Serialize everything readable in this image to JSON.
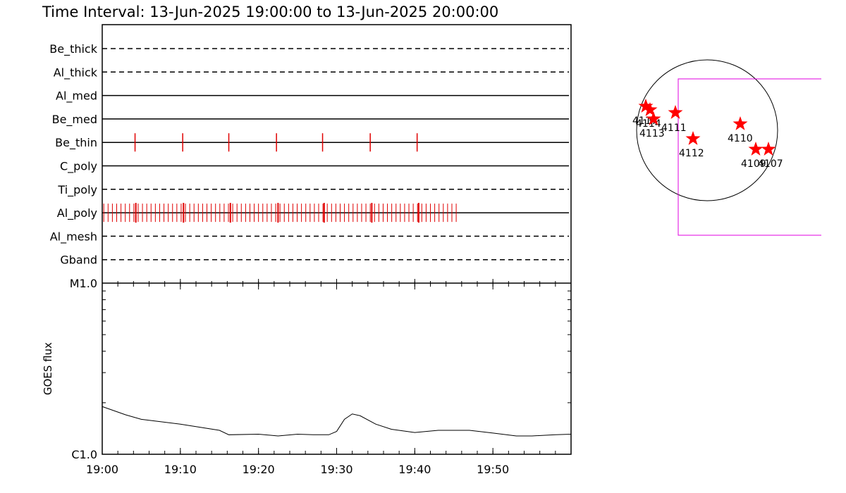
{
  "title": "Time Interval: 13-Jun-2025 19:00:00 to 13-Jun-2025 20:00:00",
  "time_axis": {
    "xlim": [
      0,
      60
    ],
    "xticks": [
      {
        "value": 0,
        "label": "19:00"
      },
      {
        "value": 10,
        "label": "19:10"
      },
      {
        "value": 20,
        "label": "19:20"
      },
      {
        "value": 30,
        "label": "19:30"
      },
      {
        "value": 40,
        "label": "19:40"
      },
      {
        "value": 50,
        "label": "19:50"
      }
    ]
  },
  "filters": [
    {
      "name": "Be_thick",
      "style": "dashed",
      "observations": []
    },
    {
      "name": "Al_thick",
      "style": "dashed",
      "observations": []
    },
    {
      "name": "Al_med",
      "style": "solid",
      "observations": []
    },
    {
      "name": "Be_med",
      "style": "solid",
      "observations": []
    },
    {
      "name": "Be_thin",
      "style": "solid",
      "observations": [
        4.2,
        10.3,
        16.2,
        22.3,
        28.2,
        34.3,
        40.3
      ]
    },
    {
      "name": "C_poly",
      "style": "solid",
      "observations": []
    },
    {
      "name": "Ti_poly",
      "style": "dashed",
      "observations": []
    },
    {
      "name": "Al_poly",
      "style": "solid",
      "observations": [
        0.2,
        0.75,
        1.3,
        1.85,
        2.4,
        2.95,
        3.5,
        4.05,
        4.6,
        5.15,
        5.7,
        6.25,
        6.8,
        7.35,
        7.9,
        8.45,
        9,
        9.55,
        10.1,
        10.65,
        11.2,
        11.75,
        12.3,
        12.85,
        13.4,
        13.95,
        14.5,
        15.05,
        15.6,
        16.15,
        16.7,
        17.25,
        17.8,
        18.35,
        18.9,
        19.45,
        20,
        20.55,
        21.1,
        21.65,
        22.2,
        22.75,
        23.3,
        23.85,
        24.4,
        24.95,
        25.5,
        26.05,
        26.6,
        27.15,
        27.7,
        28.25,
        28.8,
        29.35,
        29.9,
        30.45,
        31,
        31.55,
        32.1,
        32.65,
        33.2,
        33.75,
        34.3,
        34.85,
        35.4,
        35.95,
        36.5,
        37.05,
        37.6,
        38.15,
        38.7,
        39.25,
        39.8,
        40.35,
        40.9,
        41.45,
        42,
        42.55,
        43.1,
        43.65,
        44.2,
        44.75,
        45.3
      ],
      "long_observations": [
        4.3,
        10.4,
        16.4,
        22.5,
        28.4,
        34.5,
        40.5
      ]
    },
    {
      "name": "Al_mesh",
      "style": "dashed",
      "observations": []
    },
    {
      "name": "Gband",
      "style": "dashed",
      "observations": []
    }
  ],
  "goes": {
    "ylabel": "GOES flux",
    "log": true,
    "ylim": [
      1e-06,
      1e-05
    ],
    "yticks": [
      {
        "value": 1e-06,
        "label": "C1.0"
      },
      {
        "value": 1e-05,
        "label": "M1.0"
      }
    ],
    "x": [
      0,
      3,
      5,
      10,
      15,
      16.2,
      20,
      22.5,
      25,
      27,
      29,
      30,
      31,
      32,
      33,
      35,
      37,
      40,
      43,
      47,
      50,
      53,
      55,
      58,
      60
    ],
    "values": [
      1.9e-06,
      1.7e-06,
      1.6e-06,
      1.5e-06,
      1.38e-06,
      1.3e-06,
      1.31e-06,
      1.28e-06,
      1.31e-06,
      1.3e-06,
      1.3e-06,
      1.36e-06,
      1.6e-06,
      1.72e-06,
      1.68e-06,
      1.5e-06,
      1.4e-06,
      1.34e-06,
      1.38e-06,
      1.38e-06,
      1.33e-06,
      1.28e-06,
      1.28e-06,
      1.3e-06,
      1.31e-06
    ]
  },
  "regions": [
    "4117",
    "4114",
    "4113",
    "4111",
    "4112",
    "4110",
    "4109",
    "4107"
  ]
}
